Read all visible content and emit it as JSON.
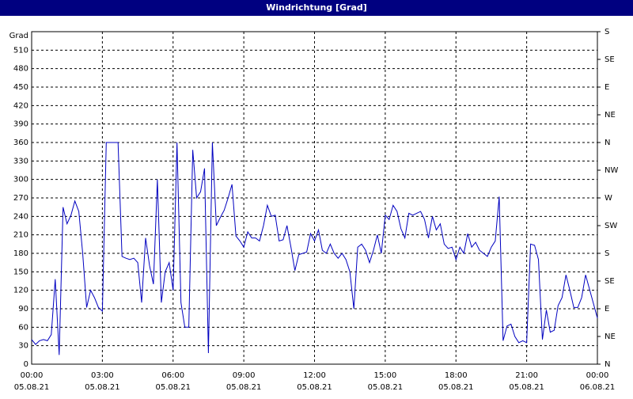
{
  "chart_data": {
    "type": "line",
    "title": "Windrichtung [Grad]",
    "ylabel": "Grad",
    "xlim": [
      0,
      1440
    ],
    "xticks": [
      {
        "value": 0,
        "label": "00:00"
      },
      {
        "value": 180,
        "label": "03:00"
      },
      {
        "value": 360,
        "label": "06:00"
      },
      {
        "value": 540,
        "label": "09:00"
      },
      {
        "value": 720,
        "label": "12:00"
      },
      {
        "value": 900,
        "label": "15:00"
      },
      {
        "value": 1080,
        "label": "18:00"
      },
      {
        "value": 1260,
        "label": "21:00"
      },
      {
        "value": 1440,
        "label": "00:00"
      }
    ],
    "xtick_dates": [
      "05.08.21",
      "05.08.21",
      "05.08.21",
      "05.08.21",
      "05.08.21",
      "05.08.21",
      "05.08.21",
      "05.08.21",
      "06.08.21"
    ],
    "ylim": [
      0,
      540
    ],
    "yticks": [
      0,
      30,
      60,
      90,
      120,
      150,
      180,
      210,
      240,
      270,
      300,
      330,
      360,
      390,
      420,
      450,
      480,
      510
    ],
    "y2lim": [
      0,
      540
    ],
    "y2ticks": [
      {
        "value": 0,
        "label": "N"
      },
      {
        "value": 45,
        "label": "NE"
      },
      {
        "value": 90,
        "label": "E"
      },
      {
        "value": 135,
        "label": "SE"
      },
      {
        "value": 180,
        "label": "S"
      },
      {
        "value": 225,
        "label": "SW"
      },
      {
        "value": 270,
        "label": "W"
      },
      {
        "value": 315,
        "label": "NW"
      },
      {
        "value": 360,
        "label": "N"
      },
      {
        "value": 405,
        "label": "NE"
      },
      {
        "value": 450,
        "label": "E"
      },
      {
        "value": 495,
        "label": "SE"
      },
      {
        "value": 540,
        "label": "S"
      }
    ],
    "grid": true,
    "x": [
      0,
      10,
      20,
      30,
      40,
      50,
      60,
      70,
      80,
      90,
      100,
      110,
      120,
      130,
      140,
      150,
      160,
      170,
      180,
      190,
      200,
      210,
      220,
      230,
      240,
      250,
      260,
      270,
      280,
      290,
      300,
      310,
      320,
      330,
      340,
      350,
      360,
      370,
      380,
      390,
      400,
      410,
      420,
      430,
      440,
      450,
      460,
      470,
      480,
      490,
      500,
      510,
      520,
      530,
      540,
      550,
      560,
      570,
      580,
      590,
      600,
      610,
      620,
      630,
      640,
      650,
      660,
      670,
      680,
      690,
      700,
      710,
      720,
      730,
      740,
      750,
      760,
      770,
      780,
      790,
      800,
      810,
      820,
      830,
      840,
      850,
      860,
      870,
      880,
      890,
      900,
      910,
      920,
      930,
      940,
      950,
      960,
      970,
      980,
      990,
      1000,
      1010,
      1020,
      1030,
      1040,
      1050,
      1060,
      1070,
      1080,
      1090,
      1100,
      1110,
      1120,
      1130,
      1140,
      1150,
      1160,
      1170,
      1180,
      1190,
      1200,
      1210,
      1220,
      1230,
      1240,
      1250,
      1260,
      1270,
      1280,
      1290,
      1300,
      1310,
      1320,
      1330,
      1340,
      1350,
      1360,
      1370,
      1380,
      1390,
      1400,
      1410,
      1440
    ],
    "series": [
      {
        "name": "Windrichtung",
        "color": "#0000c0",
        "values": [
          40,
          32,
          38,
          40,
          38,
          48,
          138,
          15,
          255,
          228,
          242,
          265,
          248,
          180,
          92,
          120,
          108,
          92,
          86,
          360,
          360,
          360,
          360,
          175,
          172,
          170,
          172,
          165,
          100,
          205,
          160,
          130,
          300,
          100,
          150,
          165,
          120,
          360,
          100,
          60,
          60,
          348,
          270,
          280,
          318,
          18,
          360,
          225,
          238,
          250,
          270,
          292,
          208,
          200,
          190,
          215,
          205,
          205,
          200,
          225,
          258,
          240,
          242,
          200,
          202,
          225,
          190,
          152,
          178,
          180,
          182,
          212,
          200,
          218,
          185,
          180,
          195,
          180,
          172,
          180,
          170,
          150,
          90,
          190,
          195,
          185,
          165,
          185,
          210,
          180,
          242,
          235,
          258,
          248,
          220,
          205,
          245,
          242,
          245,
          248,
          235,
          205,
          240,
          218,
          228,
          195,
          188,
          190,
          170,
          190,
          180,
          212,
          190,
          198,
          185,
          180,
          175,
          190,
          200,
          272,
          38,
          62,
          65,
          45,
          35,
          38,
          35,
          195,
          193,
          170,
          40,
          88,
          52,
          55,
          95,
          108,
          145,
          120,
          92,
          92,
          108,
          145,
          75
        ]
      }
    ]
  }
}
